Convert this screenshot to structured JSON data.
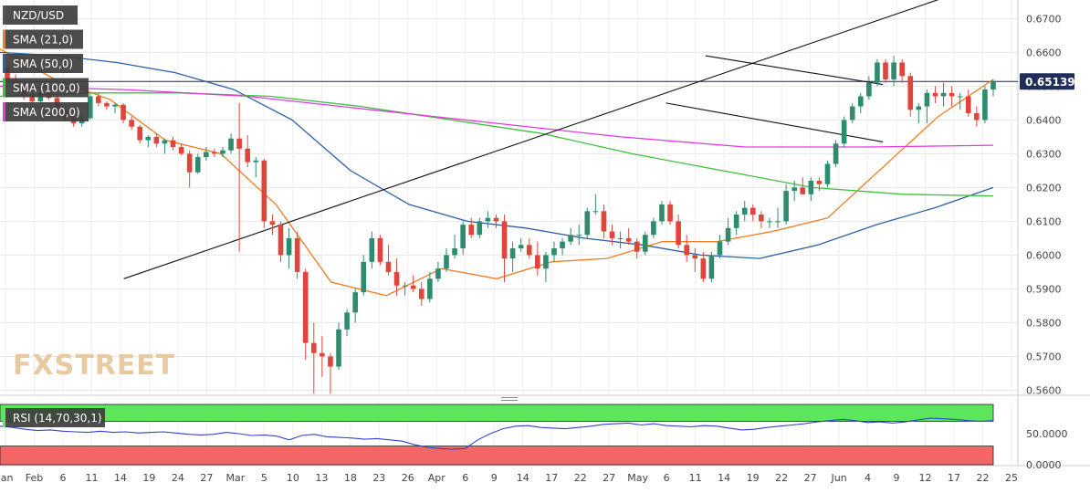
{
  "chart_data": [
    {
      "type": "candlestick",
      "title": "NZD/USD",
      "price_tag": "0.651395",
      "ylim": [
        0.5585,
        0.6755
      ],
      "y_ticks": [
        "0.6700",
        "0.6600",
        "0.6500",
        "0.6400",
        "0.6300",
        "0.6200",
        "0.6100",
        "0.6000",
        "0.5900",
        "0.5800",
        "0.5700",
        "0.5600"
      ],
      "x_ticks": [
        "Jan",
        "Feb",
        "6",
        "11",
        "14",
        "19",
        "24",
        "27",
        "Mar",
        "5",
        "10",
        "13",
        "18",
        "23",
        "26",
        "Apr",
        "6",
        "9",
        "14",
        "17",
        "22",
        "27",
        "May",
        "6",
        "11",
        "14",
        "19",
        "22",
        "27",
        "Jun",
        "4",
        "9",
        "12",
        "17",
        "22",
        "25"
      ],
      "candles": [
        [
          0.6555,
          0.656,
          0.651,
          0.652
        ],
        [
          0.652,
          0.6535,
          0.6495,
          0.6505
        ],
        [
          0.6505,
          0.651,
          0.646,
          0.647
        ],
        [
          0.647,
          0.648,
          0.644,
          0.6455
        ],
        [
          0.6455,
          0.649,
          0.645,
          0.648
        ],
        [
          0.648,
          0.6495,
          0.646,
          0.6465
        ],
        [
          0.6465,
          0.647,
          0.6425,
          0.643
        ],
        [
          0.643,
          0.644,
          0.6395,
          0.6405
        ],
        [
          0.6405,
          0.6415,
          0.638,
          0.639
        ],
        [
          0.639,
          0.642,
          0.638,
          0.6405
        ],
        [
          0.6405,
          0.648,
          0.64,
          0.647
        ],
        [
          0.647,
          0.648,
          0.644,
          0.645
        ],
        [
          0.645,
          0.6455,
          0.643,
          0.644
        ],
        [
          0.644,
          0.645,
          0.642,
          0.6445
        ],
        [
          0.6445,
          0.645,
          0.639,
          0.64
        ],
        [
          0.64,
          0.641,
          0.637,
          0.638
        ],
        [
          0.638,
          0.6385,
          0.633,
          0.634
        ],
        [
          0.634,
          0.6355,
          0.632,
          0.635
        ],
        [
          0.635,
          0.636,
          0.632,
          0.633
        ],
        [
          0.633,
          0.6345,
          0.63,
          0.634
        ],
        [
          0.634,
          0.635,
          0.631,
          0.632
        ],
        [
          0.632,
          0.633,
          0.6295,
          0.63
        ],
        [
          0.63,
          0.631,
          0.62,
          0.6245
        ],
        [
          0.6245,
          0.63,
          0.624,
          0.629
        ],
        [
          0.629,
          0.632,
          0.628,
          0.6305
        ],
        [
          0.6305,
          0.6315,
          0.629,
          0.63
        ],
        [
          0.63,
          0.632,
          0.629,
          0.631
        ],
        [
          0.631,
          0.636,
          0.63,
          0.6345
        ],
        [
          0.6345,
          0.645,
          0.601,
          0.6315
        ],
        [
          0.6315,
          0.6355,
          0.626,
          0.6275
        ],
        [
          0.6275,
          0.629,
          0.623,
          0.628
        ],
        [
          0.628,
          0.6285,
          0.608,
          0.61
        ],
        [
          0.61,
          0.612,
          0.606,
          0.609
        ],
        [
          0.609,
          0.61,
          0.598,
          0.6
        ],
        [
          0.6,
          0.608,
          0.596,
          0.605
        ],
        [
          0.605,
          0.607,
          0.593,
          0.595
        ],
        [
          0.595,
          0.596,
          0.569,
          0.574
        ],
        [
          0.574,
          0.58,
          0.559,
          0.571
        ],
        [
          0.571,
          0.576,
          0.564,
          0.57
        ],
        [
          0.57,
          0.571,
          0.559,
          0.567
        ],
        [
          0.567,
          0.58,
          0.566,
          0.578
        ],
        [
          0.578,
          0.584,
          0.576,
          0.583
        ],
        [
          0.583,
          0.59,
          0.58,
          0.589
        ],
        [
          0.589,
          0.6,
          0.588,
          0.598
        ],
        [
          0.598,
          0.607,
          0.596,
          0.605
        ],
        [
          0.605,
          0.606,
          0.597,
          0.598
        ],
        [
          0.598,
          0.603,
          0.594,
          0.595
        ],
        [
          0.595,
          0.599,
          0.588,
          0.591
        ],
        [
          0.591,
          0.592,
          0.588,
          0.591
        ],
        [
          0.591,
          0.594,
          0.589,
          0.59
        ],
        [
          0.59,
          0.592,
          0.585,
          0.587
        ],
        [
          0.587,
          0.595,
          0.586,
          0.593
        ],
        [
          0.593,
          0.598,
          0.592,
          0.596
        ],
        [
          0.596,
          0.602,
          0.595,
          0.6
        ],
        [
          0.6,
          0.606,
          0.599,
          0.602
        ],
        [
          0.602,
          0.61,
          0.6,
          0.609
        ],
        [
          0.609,
          0.611,
          0.605,
          0.606
        ],
        [
          0.606,
          0.611,
          0.605,
          0.61
        ],
        [
          0.61,
          0.613,
          0.608,
          0.611
        ],
        [
          0.611,
          0.612,
          0.608,
          0.61
        ],
        [
          0.61,
          0.612,
          0.592,
          0.599
        ],
        [
          0.599,
          0.604,
          0.595,
          0.602
        ],
        [
          0.602,
          0.605,
          0.601,
          0.603
        ],
        [
          0.603,
          0.605,
          0.599,
          0.6
        ],
        [
          0.6,
          0.604,
          0.594,
          0.596
        ],
        [
          0.596,
          0.601,
          0.592,
          0.6
        ],
        [
          0.6,
          0.604,
          0.598,
          0.602
        ],
        [
          0.602,
          0.605,
          0.6,
          0.604
        ],
        [
          0.604,
          0.608,
          0.603,
          0.606
        ],
        [
          0.606,
          0.609,
          0.603,
          0.606
        ],
        [
          0.606,
          0.614,
          0.605,
          0.613
        ],
        [
          0.613,
          0.618,
          0.612,
          0.613
        ],
        [
          0.613,
          0.615,
          0.605,
          0.607
        ],
        [
          0.607,
          0.609,
          0.603,
          0.605
        ],
        [
          0.605,
          0.607,
          0.602,
          0.605
        ],
        [
          0.605,
          0.608,
          0.603,
          0.604
        ],
        [
          0.604,
          0.605,
          0.599,
          0.601
        ],
        [
          0.601,
          0.607,
          0.6,
          0.606
        ],
        [
          0.606,
          0.611,
          0.605,
          0.61
        ],
        [
          0.61,
          0.616,
          0.609,
          0.615
        ],
        [
          0.615,
          0.616,
          0.609,
          0.61
        ],
        [
          0.61,
          0.612,
          0.602,
          0.603
        ],
        [
          0.603,
          0.606,
          0.598,
          0.6
        ],
        [
          0.6,
          0.602,
          0.595,
          0.599
        ],
        [
          0.599,
          0.601,
          0.592,
          0.593
        ],
        [
          0.593,
          0.601,
          0.592,
          0.6
        ],
        [
          0.6,
          0.606,
          0.599,
          0.604
        ],
        [
          0.604,
          0.611,
          0.603,
          0.608
        ],
        [
          0.608,
          0.613,
          0.606,
          0.612
        ],
        [
          0.612,
          0.616,
          0.61,
          0.614
        ],
        [
          0.614,
          0.615,
          0.61,
          0.612
        ],
        [
          0.612,
          0.613,
          0.608,
          0.61
        ],
        [
          0.61,
          0.611,
          0.608,
          0.61
        ],
        [
          0.61,
          0.614,
          0.608,
          0.61
        ],
        [
          0.61,
          0.621,
          0.609,
          0.619
        ],
        [
          0.619,
          0.622,
          0.616,
          0.62
        ],
        [
          0.62,
          0.623,
          0.618,
          0.618
        ],
        [
          0.618,
          0.623,
          0.616,
          0.622
        ],
        [
          0.622,
          0.623,
          0.619,
          0.621
        ],
        [
          0.621,
          0.628,
          0.62,
          0.627
        ],
        [
          0.627,
          0.634,
          0.626,
          0.633
        ],
        [
          0.633,
          0.641,
          0.632,
          0.64
        ],
        [
          0.64,
          0.645,
          0.639,
          0.644
        ],
        [
          0.644,
          0.648,
          0.642,
          0.647
        ],
        [
          0.647,
          0.653,
          0.646,
          0.651
        ],
        [
          0.651,
          0.658,
          0.65,
          0.657
        ],
        [
          0.657,
          0.658,
          0.651,
          0.652
        ],
        [
          0.652,
          0.659,
          0.65,
          0.657
        ],
        [
          0.657,
          0.658,
          0.651,
          0.653
        ],
        [
          0.653,
          0.654,
          0.641,
          0.643
        ],
        [
          0.643,
          0.645,
          0.639,
          0.644
        ],
        [
          0.644,
          0.649,
          0.639,
          0.648
        ],
        [
          0.648,
          0.65,
          0.645,
          0.647
        ],
        [
          0.647,
          0.651,
          0.644,
          0.648
        ],
        [
          0.648,
          0.65,
          0.644,
          0.647
        ],
        [
          0.647,
          0.648,
          0.643,
          0.647
        ],
        [
          0.647,
          0.649,
          0.641,
          0.642
        ],
        [
          0.642,
          0.644,
          0.638,
          0.64
        ],
        [
          0.64,
          0.65,
          0.639,
          0.649
        ],
        [
          0.649,
          0.652,
          0.647,
          0.6514
        ]
      ],
      "overlays": [
        {
          "name": "SMA (21,0)",
          "color": "#f07b22",
          "values": [
            0.661,
            0.652,
            0.646,
            0.634,
            0.63,
            0.615,
            0.592,
            0.588,
            0.596,
            0.593,
            0.598,
            0.599,
            0.604,
            0.604,
            0.607,
            0.611,
            0.626,
            0.641,
            0.652
          ]
        },
        {
          "name": "SMA (50,0)",
          "color": "#2c5fa8",
          "values": [
            0.66,
            0.659,
            0.657,
            0.654,
            0.649,
            0.64,
            0.625,
            0.615,
            0.61,
            0.608,
            0.605,
            0.603,
            0.6,
            0.599,
            0.603,
            0.609,
            0.614,
            0.62
          ]
        },
        {
          "name": "SMA (100,0)",
          "color": "#3cc23c",
          "values": [
            0.647,
            0.648,
            0.648,
            0.647,
            0.644,
            0.64,
            0.636,
            0.63,
            0.625,
            0.62,
            0.618,
            0.6175
          ]
        },
        {
          "name": "SMA (200,0)",
          "color": "#e03ae0",
          "values": [
            0.65,
            0.649,
            0.647,
            0.643,
            0.639,
            0.635,
            0.632,
            0.632,
            0.6325
          ]
        }
      ],
      "trendlines": [
        {
          "name": "rising-trendline",
          "color": "#111111",
          "points": [
            [
              0.6,
              0.593
            ],
            [
              4.75,
              0.676
            ]
          ]
        },
        {
          "name": "upper-channel-line",
          "color": "#111111",
          "points": [
            [
              3.55,
              0.659
            ],
            [
              4.45,
              0.6505
            ]
          ]
        },
        {
          "name": "lower-channel-line",
          "color": "#111111",
          "points": [
            [
              3.35,
              0.645
            ],
            [
              4.45,
              0.6335
            ]
          ]
        }
      ],
      "resistance_level": 0.6514,
      "watermark": "FXSTREET"
    },
    {
      "type": "line",
      "title": "RSI (14,70,30,1)",
      "ylim": [
        0,
        100
      ],
      "y_ticks": [
        "50.0000",
        "0.0000"
      ],
      "upper_zone": [
        70,
        100
      ],
      "lower_zone": [
        0,
        30
      ],
      "series": [
        {
          "name": "RSI",
          "color": "#3344cc",
          "values": [
            62,
            60,
            57,
            55,
            56,
            54,
            53,
            52,
            54,
            52,
            53,
            51,
            52,
            53,
            51,
            49,
            48,
            49,
            52,
            50,
            47,
            48,
            46,
            40,
            47,
            49,
            45,
            44,
            43,
            41,
            42,
            40,
            38,
            32,
            28,
            26,
            25,
            26,
            40,
            50,
            58,
            62,
            63,
            60,
            59,
            58,
            60,
            62,
            65,
            66,
            67,
            64,
            66,
            63,
            62,
            61,
            63,
            62,
            59,
            56,
            57,
            60,
            62,
            64,
            66,
            69,
            71,
            73,
            71,
            68,
            69,
            67,
            69,
            72,
            75,
            74,
            73,
            71,
            70,
            71
          ]
        }
      ],
      "colors": {
        "upper_zone": "#5ce65c",
        "lower_zone": "#f26666"
      }
    }
  ],
  "legend": {
    "items": [
      {
        "label": "NZD/USD",
        "swatch": "#555555"
      },
      {
        "label": "SMA (21,0)",
        "swatch": "#f07b22"
      },
      {
        "label": "SMA (50,0)",
        "swatch": "#2c5fa8"
      },
      {
        "label": "SMA (100,0)",
        "swatch": "#3cc23c"
      },
      {
        "label": "SMA (200,0)",
        "swatch": "#e03ae0"
      }
    ]
  },
  "colors": {
    "bull": "#2e8b6e",
    "bear": "#e0453b"
  }
}
